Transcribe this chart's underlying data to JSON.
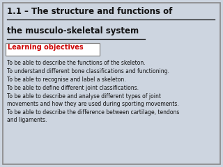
{
  "title_line1": "1.1 – The structure and functions of",
  "title_line2": "the musculo-skeletal system",
  "label_text": "Learning objectives",
  "bullet_points": [
    "To be able to describe the functions of the skeleton.",
    "To understand different bone classifications and functioning.",
    "To be able to recognise and label a skeleton.",
    "To be able to define different joint classifications.",
    "To be able to describe and analyse different types of joint\nmovements and how they are used during sporting movements.",
    "To be able to describe the difference between cartilage, tendons\nand ligaments."
  ],
  "bg_color": "#cdd5e0",
  "border_color": "#888888",
  "title_color": "#111111",
  "label_color": "#cc0000",
  "label_box_color": "#ffffff",
  "label_box_edge": "#888888",
  "bullet_color": "#111111",
  "title_fontsize": 8.5,
  "label_fontsize": 7.0,
  "bullet_fontsize": 5.5
}
